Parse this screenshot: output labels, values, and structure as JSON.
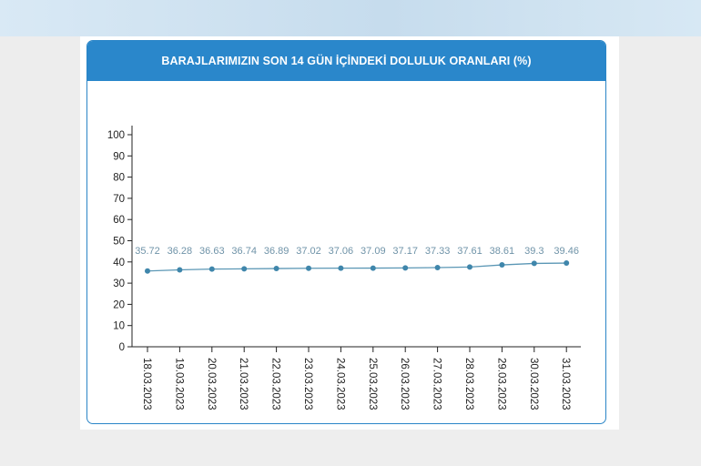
{
  "page": {
    "background": "#ededed",
    "accent_color": "#2a87cb",
    "line_color": "#5b97b5",
    "point_color": "#3f86ab",
    "label_color": "#6f93a8"
  },
  "chart_data": {
    "type": "line",
    "title": "BARAJLARIMIZIN SON 14 GÜN İÇİNDEKİ DOLULUK ORANLARI (%)",
    "categories": [
      "18.03.2023",
      "19.03.2023",
      "20.03.2023",
      "21.03.2023",
      "22.03.2023",
      "23.03.2023",
      "24.03.2023",
      "25.03.2023",
      "26.03.2023",
      "27.03.2023",
      "28.03.2023",
      "29.03.2023",
      "30.03.2023",
      "31.03.2023"
    ],
    "values": [
      35.72,
      36.28,
      36.63,
      36.74,
      36.89,
      37.02,
      37.06,
      37.09,
      37.17,
      37.33,
      37.61,
      38.61,
      39.3,
      39.46
    ],
    "data_labels": [
      "35.72",
      "36.28",
      "36.63",
      "36.74",
      "36.89",
      "37.02",
      "37.06",
      "37.09",
      "37.17",
      "37.33",
      "37.61",
      "38.61",
      "39.3",
      "39.46"
    ],
    "y_ticks": [
      "0",
      "10",
      "20",
      "30",
      "40",
      "50",
      "60",
      "70",
      "80",
      "90",
      "100"
    ],
    "ylim": [
      0,
      100
    ],
    "xlabel": "",
    "ylabel": "",
    "grid": false,
    "legend": "none"
  }
}
